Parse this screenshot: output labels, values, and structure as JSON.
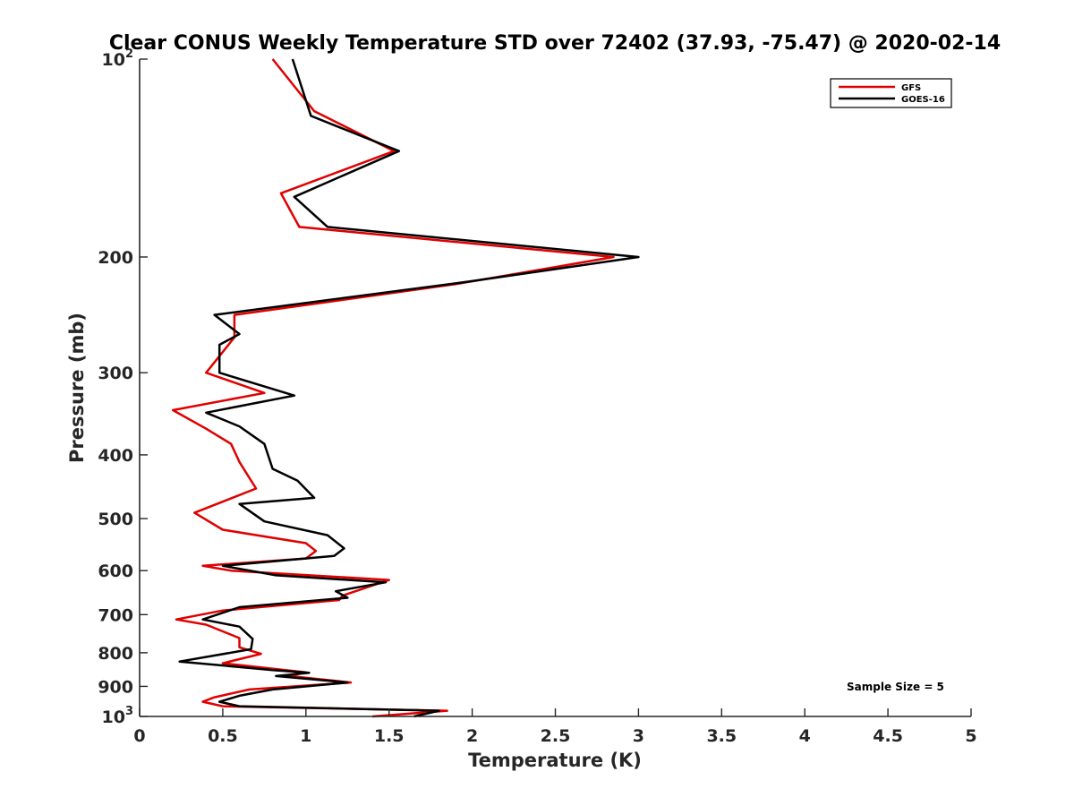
{
  "chart_data": {
    "type": "line",
    "title": "Clear CONUS Weekly Temperature STD over 72402 (37.93, -75.47) @ 2020-02-14",
    "xlabel": "Temperature (K)",
    "ylabel": "Pressure (mb)",
    "xlim": [
      0,
      5
    ],
    "ylim": [
      100,
      1000
    ],
    "yscale": "log",
    "y_reversed": true,
    "grid": false,
    "legend_position": "top-right",
    "x_ticks": [
      {
        "value": 0,
        "label": "0"
      },
      {
        "value": 0.5,
        "label": "0.5"
      },
      {
        "value": 1,
        "label": "1"
      },
      {
        "value": 1.5,
        "label": "1.5"
      },
      {
        "value": 2,
        "label": "2"
      },
      {
        "value": 2.5,
        "label": "2.5"
      },
      {
        "value": 3,
        "label": "3"
      },
      {
        "value": 3.5,
        "label": "3.5"
      },
      {
        "value": 4,
        "label": "4"
      },
      {
        "value": 4.5,
        "label": "4.5"
      },
      {
        "value": 5,
        "label": "5"
      }
    ],
    "y_ticks": [
      {
        "value": 100,
        "base": "10",
        "exp": "2"
      },
      {
        "value": 200,
        "label": "200"
      },
      {
        "value": 300,
        "label": "300"
      },
      {
        "value": 400,
        "label": "400"
      },
      {
        "value": 500,
        "label": "500"
      },
      {
        "value": 600,
        "label": "600"
      },
      {
        "value": 700,
        "label": "700"
      },
      {
        "value": 800,
        "label": "800"
      },
      {
        "value": 900,
        "label": "900"
      },
      {
        "value": 1000,
        "base": "10",
        "exp": "3"
      }
    ],
    "annotation": "Sample Size = 5",
    "series": [
      {
        "name": "GFS",
        "color": "#e00000",
        "points": [
          {
            "x": 0.8,
            "y": 100
          },
          {
            "x": 1.05,
            "y": 120
          },
          {
            "x": 1.53,
            "y": 138
          },
          {
            "x": 0.85,
            "y": 160
          },
          {
            "x": 0.96,
            "y": 180
          },
          {
            "x": 2.85,
            "y": 200
          },
          {
            "x": 1.9,
            "y": 220
          },
          {
            "x": 0.57,
            "y": 245
          },
          {
            "x": 0.57,
            "y": 265
          },
          {
            "x": 0.4,
            "y": 300
          },
          {
            "x": 0.75,
            "y": 322
          },
          {
            "x": 0.2,
            "y": 342
          },
          {
            "x": 0.4,
            "y": 365
          },
          {
            "x": 0.55,
            "y": 385
          },
          {
            "x": 0.6,
            "y": 410
          },
          {
            "x": 0.7,
            "y": 450
          },
          {
            "x": 0.33,
            "y": 490
          },
          {
            "x": 0.5,
            "y": 520
          },
          {
            "x": 1.0,
            "y": 545
          },
          {
            "x": 1.06,
            "y": 560
          },
          {
            "x": 1.0,
            "y": 575
          },
          {
            "x": 0.38,
            "y": 590
          },
          {
            "x": 0.55,
            "y": 600
          },
          {
            "x": 1.5,
            "y": 620
          },
          {
            "x": 1.22,
            "y": 655
          },
          {
            "x": 1.2,
            "y": 665
          },
          {
            "x": 0.5,
            "y": 690
          },
          {
            "x": 0.22,
            "y": 712
          },
          {
            "x": 0.4,
            "y": 725
          },
          {
            "x": 0.6,
            "y": 760
          },
          {
            "x": 0.6,
            "y": 785
          },
          {
            "x": 0.73,
            "y": 803
          },
          {
            "x": 0.5,
            "y": 830
          },
          {
            "x": 1.0,
            "y": 857
          },
          {
            "x": 0.9,
            "y": 868
          },
          {
            "x": 1.27,
            "y": 888
          },
          {
            "x": 0.66,
            "y": 910
          },
          {
            "x": 0.45,
            "y": 935
          },
          {
            "x": 0.38,
            "y": 950
          },
          {
            "x": 0.5,
            "y": 965
          },
          {
            "x": 1.85,
            "y": 980
          },
          {
            "x": 1.4,
            "y": 1000
          }
        ]
      },
      {
        "name": "GOES-16",
        "color": "#000000",
        "points": [
          {
            "x": 0.92,
            "y": 100
          },
          {
            "x": 1.03,
            "y": 122
          },
          {
            "x": 1.56,
            "y": 138
          },
          {
            "x": 0.93,
            "y": 162
          },
          {
            "x": 1.13,
            "y": 180
          },
          {
            "x": 3.0,
            "y": 200
          },
          {
            "x": 1.98,
            "y": 218
          },
          {
            "x": 0.45,
            "y": 245
          },
          {
            "x": 0.6,
            "y": 262
          },
          {
            "x": 0.48,
            "y": 272
          },
          {
            "x": 0.48,
            "y": 300
          },
          {
            "x": 0.93,
            "y": 325
          },
          {
            "x": 0.4,
            "y": 345
          },
          {
            "x": 0.6,
            "y": 362
          },
          {
            "x": 0.75,
            "y": 385
          },
          {
            "x": 0.8,
            "y": 420
          },
          {
            "x": 0.95,
            "y": 438
          },
          {
            "x": 1.05,
            "y": 465
          },
          {
            "x": 0.6,
            "y": 475
          },
          {
            "x": 0.75,
            "y": 505
          },
          {
            "x": 1.13,
            "y": 530
          },
          {
            "x": 1.23,
            "y": 555
          },
          {
            "x": 1.17,
            "y": 570
          },
          {
            "x": 0.5,
            "y": 590
          },
          {
            "x": 0.82,
            "y": 610
          },
          {
            "x": 1.48,
            "y": 625
          },
          {
            "x": 1.18,
            "y": 645
          },
          {
            "x": 1.25,
            "y": 660
          },
          {
            "x": 0.6,
            "y": 682
          },
          {
            "x": 0.38,
            "y": 712
          },
          {
            "x": 0.6,
            "y": 730
          },
          {
            "x": 0.68,
            "y": 762
          },
          {
            "x": 0.67,
            "y": 790
          },
          {
            "x": 0.24,
            "y": 825
          },
          {
            "x": 0.8,
            "y": 850
          },
          {
            "x": 1.02,
            "y": 858
          },
          {
            "x": 0.82,
            "y": 868
          },
          {
            "x": 1.25,
            "y": 888
          },
          {
            "x": 0.8,
            "y": 910
          },
          {
            "x": 0.6,
            "y": 930
          },
          {
            "x": 0.48,
            "y": 950
          },
          {
            "x": 0.6,
            "y": 965
          },
          {
            "x": 1.8,
            "y": 980
          },
          {
            "x": 1.65,
            "y": 1000
          }
        ]
      }
    ]
  }
}
